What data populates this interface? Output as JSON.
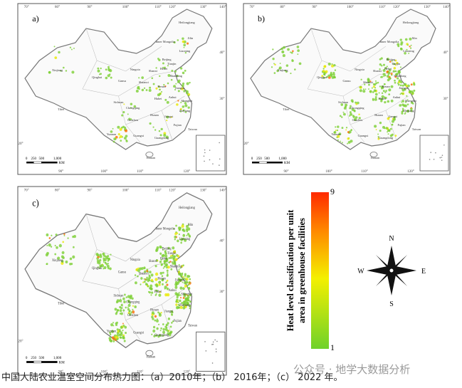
{
  "panels": [
    {
      "label": "a)"
    },
    {
      "label": "b)"
    },
    {
      "label": "c)"
    }
  ],
  "map_labels": {
    "provinces": [
      "Heilongjiang",
      "Jilin",
      "Inner Mongolia",
      "Liaoning",
      "Xinjiang",
      "Beijing",
      "Tianjin",
      "Hebei",
      "Ningxia",
      "Shanxi",
      "Shandong",
      "Qinghai",
      "Gansu",
      "Shaanxi",
      "Henan",
      "Jiangsu",
      "Tibet",
      "Sichuan",
      "Hubei",
      "Anhui",
      "Shanghai",
      "Chongqing",
      "Zhejiang",
      "Hunan",
      "Jiangxi",
      "Guizhou",
      "Fujian",
      "Yunnan",
      "Guangxi",
      "Guangdong",
      "Taiwan",
      "Hainan"
    ],
    "top_degrees": [
      "70°",
      "80°",
      "90°",
      "100°",
      "110°",
      "120°",
      "130°",
      "140°"
    ],
    "right_degrees": [
      "40°",
      "30°",
      "20°"
    ],
    "bottom_degrees": [
      "90°",
      "100°",
      "110°",
      "120°"
    ],
    "scale": [
      "0",
      "250",
      "500",
      "1,000"
    ],
    "scale_unit": "KM"
  },
  "legend": {
    "max": "9",
    "min": "1",
    "title_lines": [
      "Heat level classification per unit",
      "area in greenhouse facilities"
    ]
  },
  "compass": {
    "n": "N",
    "s": "S",
    "e": "E",
    "w": "W"
  },
  "caption": "中国大陆农业温室空间分布热力图：（a）2010年；（b） 2016年；（c） 2022 年。",
  "watermark": "公众号 · 地学大数据分析"
}
